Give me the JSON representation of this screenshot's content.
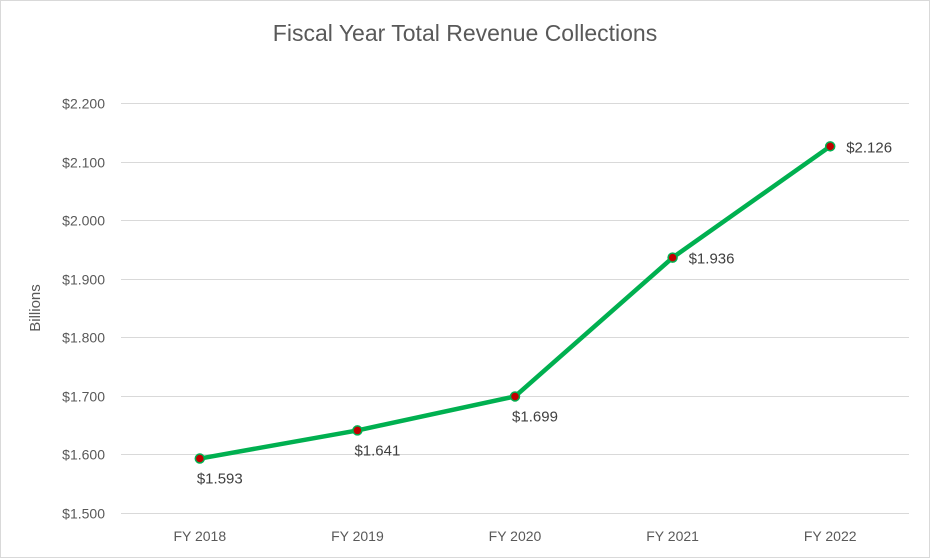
{
  "chart_data": {
    "type": "line",
    "title": "Fiscal Year Total Revenue Collections",
    "ylabel": "Billions",
    "xlabel": "",
    "categories": [
      "FY 2018",
      "FY 2019",
      "FY 2020",
      "FY 2021",
      "FY 2022"
    ],
    "series": [
      {
        "values": [
          1.593,
          1.641,
          1.699,
          1.936,
          2.126
        ],
        "labels": [
          "$1.593",
          "$1.641",
          "$1.699",
          "$1.936",
          "$2.126"
        ],
        "line_color": "#00b050",
        "marker_color": "#c00000"
      }
    ],
    "yticks": [
      1.5,
      1.6,
      1.7,
      1.8,
      1.9,
      2.0,
      2.1,
      2.2
    ],
    "ytick_labels": [
      "$1.500",
      "$1.600",
      "$1.700",
      "$1.800",
      "$1.900",
      "$2.000",
      "$2.100",
      "$2.200"
    ],
    "ylim": [
      1.5,
      2.2
    ],
    "grid": true,
    "legend": "none"
  }
}
